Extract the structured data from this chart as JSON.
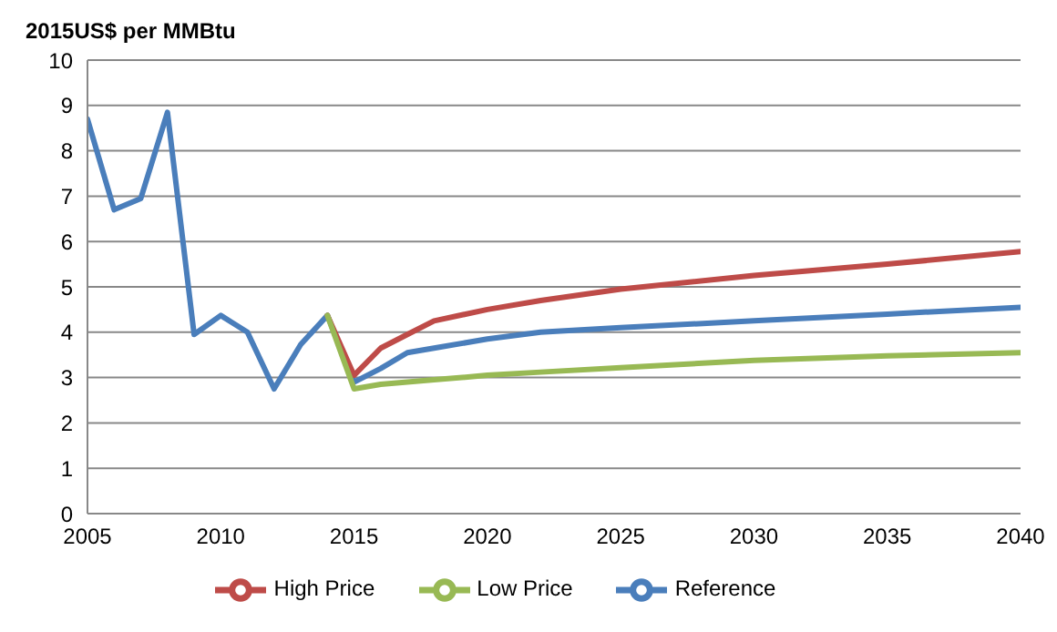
{
  "chart_data": {
    "type": "line",
    "ylabel": "2015US$ per MMBtu",
    "xlim": [
      2005,
      2040
    ],
    "xticks": [
      2005,
      2010,
      2015,
      2020,
      2025,
      2030,
      2035,
      2040
    ],
    "ylim": [
      0,
      10
    ],
    "yticks": [
      0,
      1,
      2,
      3,
      4,
      5,
      6,
      7,
      8,
      9,
      10
    ],
    "grid": "y",
    "legend": "bottom",
    "marker": "none",
    "line_style": "solid",
    "series": [
      {
        "name": "Reference",
        "color": "#4a7ebb",
        "x": [
          2005,
          2006,
          2007,
          2008,
          2009,
          2010,
          2011,
          2012,
          2013,
          2014,
          2015,
          2016,
          2017,
          2018,
          2020,
          2022,
          2025,
          2030,
          2035,
          2040
        ],
        "values": [
          8.7,
          6.7,
          6.95,
          8.85,
          3.95,
          4.37,
          4.0,
          2.75,
          3.73,
          4.37,
          2.9,
          3.2,
          3.55,
          3.65,
          3.85,
          4.0,
          4.1,
          4.25,
          4.4,
          4.55
        ]
      },
      {
        "name": "High Price",
        "color": "#be4b48",
        "x": [
          2014,
          2015,
          2016,
          2017,
          2018,
          2020,
          2022,
          2025,
          2030,
          2035,
          2040
        ],
        "values": [
          4.37,
          3.05,
          3.65,
          3.95,
          4.25,
          4.5,
          4.7,
          4.95,
          5.25,
          5.5,
          5.78
        ]
      },
      {
        "name": "Low Price",
        "color": "#98b954",
        "x": [
          2014,
          2015,
          2016,
          2018,
          2020,
          2022,
          2025,
          2030,
          2035,
          2040
        ],
        "values": [
          4.37,
          2.75,
          2.85,
          2.95,
          3.05,
          3.12,
          3.22,
          3.38,
          3.48,
          3.55
        ]
      }
    ]
  }
}
